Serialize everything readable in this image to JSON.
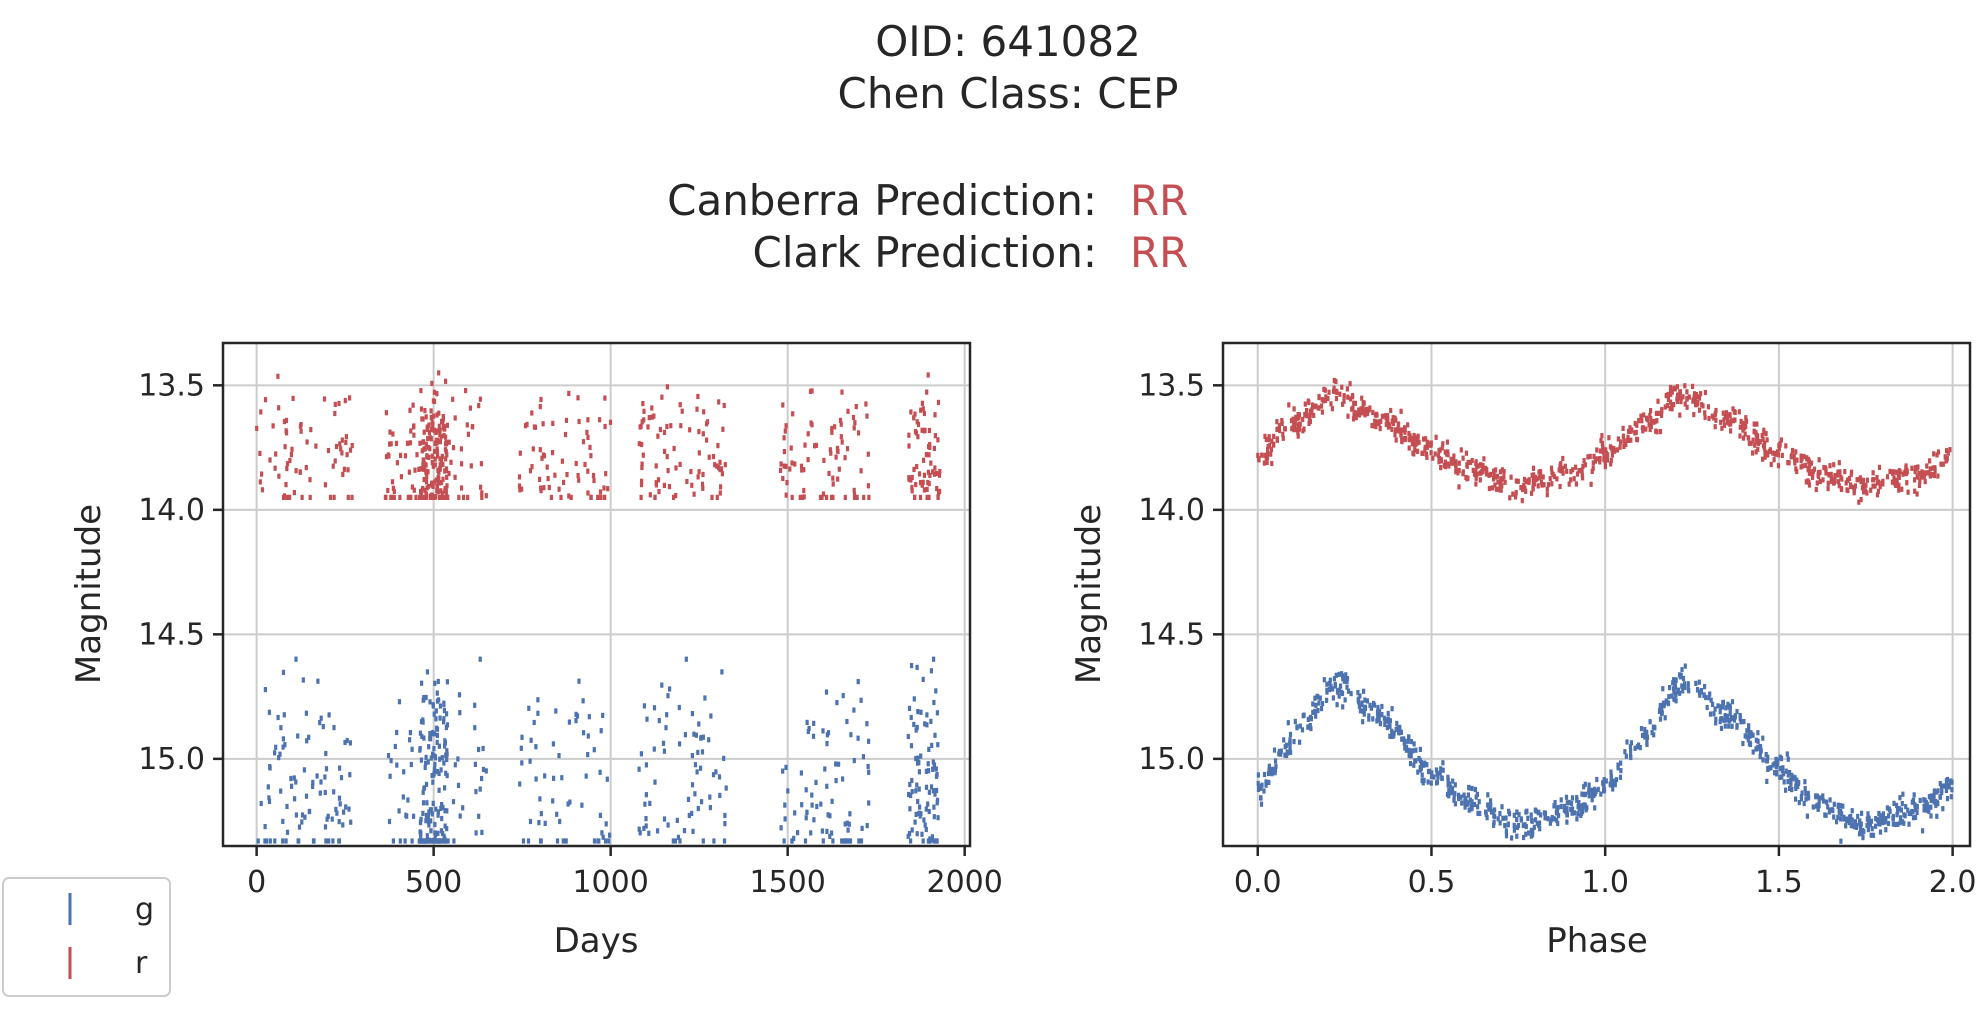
{
  "title": {
    "oid_line": "OID: 641082",
    "class_line": "Chen Class: CEP"
  },
  "predictions": [
    {
      "label": "Canberra Prediction:",
      "value": "RR",
      "color": "#c44e52"
    },
    {
      "label": "Clark Prediction:",
      "value": "RR",
      "color": "#c44e52"
    }
  ],
  "legend": {
    "placement": "bottom-left, outside plots",
    "items": [
      {
        "label": "g",
        "color": "#4c72b0"
      },
      {
        "label": "r",
        "color": "#c44e52"
      }
    ]
  },
  "chart_data": [
    {
      "type": "scatter",
      "xlabel": "Days",
      "ylabel": "Magnitude",
      "xlim": [
        -95,
        2015
      ],
      "ylim": [
        15.35,
        13.33
      ],
      "y_inverted": true,
      "grid": true,
      "xticks": [
        0,
        500,
        1000,
        1500,
        2000
      ],
      "xtick_labels": [
        "0",
        "500",
        "1000",
        "1500",
        "2000"
      ],
      "yticks": [
        13.5,
        14.0,
        14.5,
        15.0
      ],
      "ytick_labels": [
        "13.5",
        "14.0",
        "14.5",
        "15.0"
      ],
      "observing_seasons_days": [
        [
          0,
          270
        ],
        [
          360,
          650
        ],
        [
          740,
          1000
        ],
        [
          1080,
          1330
        ],
        [
          1480,
          1730
        ],
        [
          1840,
          1930
        ]
      ],
      "series": [
        {
          "name": "g",
          "color": "#4c72b0",
          "magnitude_range": [
            14.6,
            15.33
          ],
          "approx_points": 620
        },
        {
          "name": "r",
          "color": "#c44e52",
          "magnitude_range": [
            13.45,
            13.95
          ],
          "approx_points": 620
        }
      ]
    },
    {
      "type": "scatter",
      "xlabel": "Phase",
      "ylabel": "Magnitude",
      "xlim": [
        -0.1,
        2.05
      ],
      "ylim": [
        15.35,
        13.33
      ],
      "y_inverted": true,
      "grid": true,
      "xticks": [
        0.0,
        0.5,
        1.0,
        1.5,
        2.0
      ],
      "xtick_labels": [
        "0.0",
        "0.5",
        "1.0",
        "1.5",
        "2.0"
      ],
      "yticks": [
        13.5,
        14.0,
        14.5,
        15.0
      ],
      "ytick_labels": [
        "13.5",
        "14.0",
        "14.5",
        "15.0"
      ],
      "series": [
        {
          "name": "g",
          "color": "#4c72b0",
          "magnitude_at_phase": [
            [
              0.0,
              15.12
            ],
            [
              0.1,
              14.92
            ],
            [
              0.22,
              14.7
            ],
            [
              0.35,
              14.82
            ],
            [
              0.5,
              15.05
            ],
            [
              0.6,
              15.17
            ],
            [
              0.75,
              15.27
            ],
            [
              0.9,
              15.2
            ],
            [
              1.0,
              15.12
            ]
          ]
        },
        {
          "name": "r",
          "color": "#c44e52",
          "magnitude_at_phase": [
            [
              0.0,
              13.78
            ],
            [
              0.1,
              13.66
            ],
            [
              0.22,
              13.54
            ],
            [
              0.35,
              13.64
            ],
            [
              0.5,
              13.76
            ],
            [
              0.6,
              13.84
            ],
            [
              0.75,
              13.9
            ],
            [
              0.9,
              13.86
            ],
            [
              1.0,
              13.78
            ]
          ]
        }
      ]
    }
  ]
}
